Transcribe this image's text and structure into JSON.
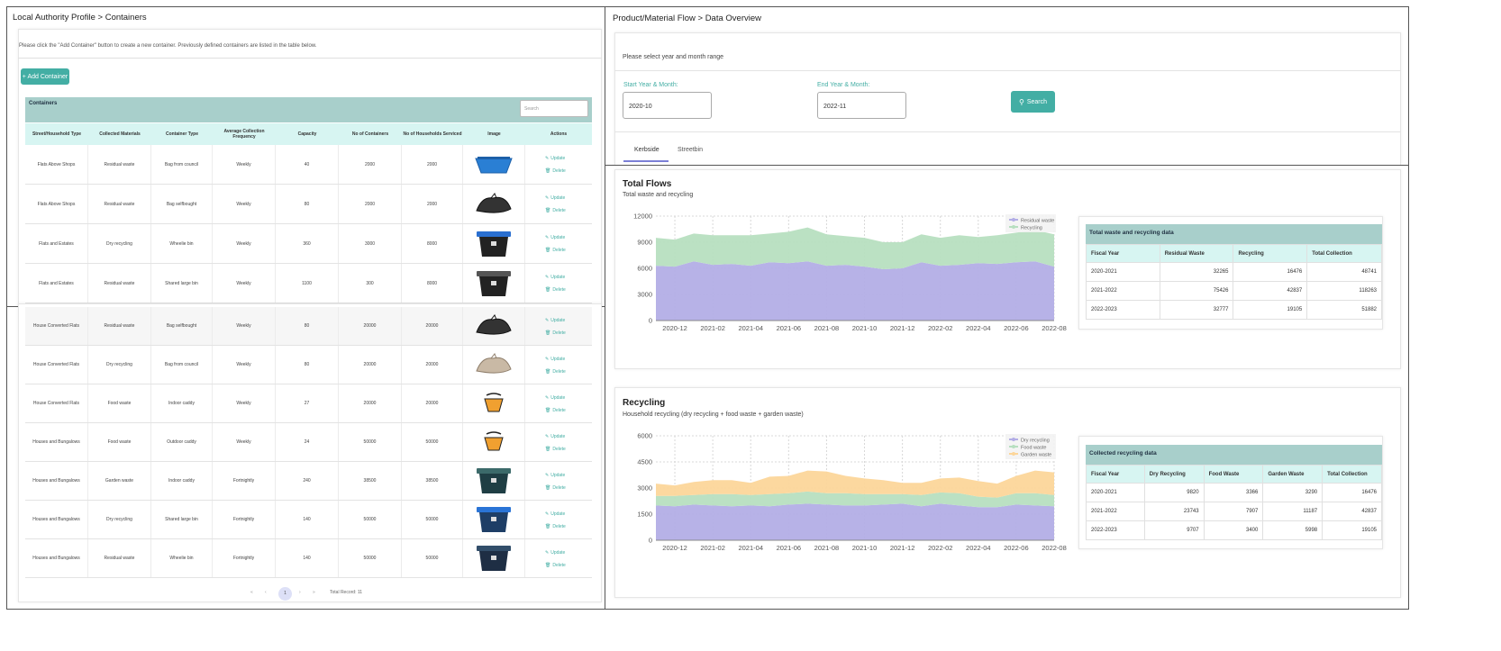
{
  "containers_panel": {
    "breadcrumb": "Local Authority Profile > Containers",
    "instruction": "Please click the \"Add Container\" button to create a new container. Previously defined containers are listed in the table below.",
    "add_button": "+ Add Container",
    "table_title": "Containers",
    "search_placeholder": "Search",
    "columns": [
      "Street/Household Type",
      "Collected Materials",
      "Container Type",
      "Average Collection Frequency",
      "Capacity",
      "No of Containers",
      "No of Households Serviced",
      "Image",
      "Actions"
    ],
    "update_label": "Update",
    "delete_label": "Delete",
    "rows": [
      {
        "type": "Flats Above Shops",
        "material": "Residual waste",
        "container": "Bag from council",
        "freq": "Weekly",
        "capacity": "40",
        "count": "2000",
        "households": "2000",
        "image": "blue-skip"
      },
      {
        "type": "Flats Above Shops",
        "material": "Residual waste",
        "container": "Bag selfbought",
        "freq": "Weekly",
        "capacity": "80",
        "count": "2000",
        "households": "2000",
        "image": "black-bag"
      },
      {
        "type": "Flats and Estates",
        "material": "Dry recycling",
        "container": "Wheelie bin",
        "freq": "Weekly",
        "capacity": "360",
        "count": "3000",
        "households": "8000",
        "image": "blue-lid-bin"
      },
      {
        "type": "Flats and Estates",
        "material": "Residual waste",
        "container": "Shared large bin",
        "freq": "Weekly",
        "capacity": "1100",
        "count": "300",
        "households": "8000",
        "image": "grey-large-bin"
      },
      {
        "type": "House Converted Flats",
        "material": "Residual waste",
        "container": "Bag selfbought",
        "freq": "Weekly",
        "capacity": "80",
        "count": "20000",
        "households": "20000",
        "image": "black-bag"
      },
      {
        "type": "House Converted Flats",
        "material": "Dry recycling",
        "container": "Bag from council",
        "freq": "Weekly",
        "capacity": "80",
        "count": "20000",
        "households": "20000",
        "image": "clear-bag"
      },
      {
        "type": "House Converted Flats",
        "material": "Food waste",
        "container": "Indoor caddy",
        "freq": "Weekly",
        "capacity": "27",
        "count": "20000",
        "households": "20000",
        "image": "orange-caddy"
      },
      {
        "type": "Houses and Bungalows",
        "material": "Food waste",
        "container": "Outdoor caddy",
        "freq": "Weekly",
        "capacity": "24",
        "count": "50000",
        "households": "50000",
        "image": "orange-caddy"
      },
      {
        "type": "Houses and Bungalows",
        "material": "Garden waste",
        "container": "Indoor caddy",
        "freq": "Fortnightly",
        "capacity": "240",
        "count": "38500",
        "households": "38500",
        "image": "green-bin"
      },
      {
        "type": "Houses and Bungalows",
        "material": "Dry recycling",
        "container": "Shared large bin",
        "freq": "Fortnightly",
        "capacity": "140",
        "count": "50000",
        "households": "50000",
        "image": "blue-bin"
      },
      {
        "type": "Houses and Bungalows",
        "material": "Residual waste",
        "container": "Wheelie bin",
        "freq": "Fortnightly",
        "capacity": "140",
        "count": "50000",
        "households": "50000",
        "image": "dark-bin"
      }
    ],
    "pager": {
      "first": "«",
      "prev": "‹",
      "page": "1",
      "next": "›",
      "last": "»",
      "total": "Total Record: 11"
    }
  },
  "flow_panel": {
    "breadcrumb": "Product/Material Flow > Data Overview",
    "instruction": "Please select year and month range",
    "start_label": "Start Year & Month:",
    "start_value": "2020-10",
    "end_label": "End Year & Month:",
    "end_value": "2022-11",
    "search_button": "Search",
    "tabs": [
      "Kerbside",
      "Streetbin"
    ],
    "active_tab": 0
  },
  "total_flows": {
    "title": "Total Flows",
    "subtitle": "Total waste and recycling",
    "table_title": "Total waste and recycling data",
    "columns": [
      "Fiscal Year",
      "Residual Waste",
      "Recycling",
      "Total Collection"
    ],
    "rows": [
      [
        "2020-2021",
        "32265",
        "16476",
        "48741"
      ],
      [
        "2021-2022",
        "75426",
        "42837",
        "118263"
      ],
      [
        "2022-2023",
        "32777",
        "19105",
        "51882"
      ]
    ]
  },
  "recycling": {
    "title": "Recycling",
    "subtitle": "Household recycling (dry recycling + food waste + garden waste)",
    "table_title": "Collected recycling data",
    "columns": [
      "Fiscal Year",
      "Dry Recycling",
      "Food Waste",
      "Garden Waste",
      "Total Collection"
    ],
    "rows": [
      [
        "2020-2021",
        "9820",
        "3366",
        "3290",
        "16476"
      ],
      [
        "2021-2022",
        "23743",
        "7907",
        "11187",
        "42837"
      ],
      [
        "2022-2023",
        "9707",
        "3400",
        "5998",
        "19105"
      ]
    ]
  },
  "chart_data": [
    {
      "type": "area",
      "stacked": true,
      "x": [
        "2020-11",
        "2020-12",
        "2021-01",
        "2021-02",
        "2021-03",
        "2021-04",
        "2021-05",
        "2021-06",
        "2021-07",
        "2021-08",
        "2021-09",
        "2021-10",
        "2021-11",
        "2021-12",
        "2022-01",
        "2022-02",
        "2022-03",
        "2022-04",
        "2022-05",
        "2022-06",
        "2022-07",
        "2022-08"
      ],
      "xticks": [
        "2020-12",
        "2021-02",
        "2021-04",
        "2021-06",
        "2021-08",
        "2021-10",
        "2021-12",
        "2022-02",
        "2022-04",
        "2022-06",
        "2022-08"
      ],
      "series": [
        {
          "name": "Residual waste",
          "color": "#b3aee6",
          "values": [
            6300,
            6200,
            6800,
            6400,
            6500,
            6300,
            6700,
            6600,
            6800,
            6300,
            6400,
            6200,
            5900,
            6000,
            6700,
            6300,
            6400,
            6600,
            6500,
            6700,
            6800,
            6200
          ]
        },
        {
          "name": "Recycling",
          "color": "#b7dfc0",
          "values": [
            3200,
            3100,
            3200,
            3400,
            3300,
            3500,
            3300,
            3600,
            3900,
            3600,
            3300,
            3300,
            3100,
            3000,
            3200,
            3200,
            3400,
            3000,
            3300,
            3400,
            3600,
            3700
          ]
        }
      ],
      "ylim": [
        0,
        12000
      ],
      "yticks": [
        0,
        3000,
        6000,
        9000,
        12000
      ],
      "grid": true,
      "legend": "top-right"
    },
    {
      "type": "area",
      "stacked": true,
      "x": [
        "2020-11",
        "2020-12",
        "2021-01",
        "2021-02",
        "2021-03",
        "2021-04",
        "2021-05",
        "2021-06",
        "2021-07",
        "2021-08",
        "2021-09",
        "2021-10",
        "2021-11",
        "2021-12",
        "2022-01",
        "2022-02",
        "2022-03",
        "2022-04",
        "2022-05",
        "2022-06",
        "2022-07",
        "2022-08"
      ],
      "xticks": [
        "2020-12",
        "2021-02",
        "2021-04",
        "2021-06",
        "2021-08",
        "2021-10",
        "2021-12",
        "2022-02",
        "2022-04",
        "2022-06",
        "2022-08"
      ],
      "series": [
        {
          "name": "Dry recycling",
          "color": "#b3aee6",
          "values": [
            2000,
            1950,
            2050,
            2000,
            1950,
            2000,
            1950,
            2050,
            2100,
            2050,
            2000,
            2000,
            2050,
            2100,
            1950,
            2100,
            2000,
            1900,
            1900,
            2050,
            2000,
            1950
          ]
        },
        {
          "name": "Food waste",
          "color": "#b7dfc0",
          "values": [
            550,
            600,
            550,
            650,
            700,
            600,
            700,
            650,
            700,
            650,
            700,
            650,
            600,
            550,
            650,
            650,
            700,
            600,
            550,
            650,
            700,
            650
          ]
        },
        {
          "name": "Garden waste",
          "color": "#fcd69a",
          "values": [
            700,
            600,
            750,
            800,
            800,
            700,
            1000,
            1000,
            1200,
            1250,
            1000,
            900,
            800,
            650,
            700,
            800,
            900,
            900,
            800,
            1000,
            1300,
            1300
          ]
        }
      ],
      "ylim": [
        0,
        6000
      ],
      "yticks": [
        0,
        1500,
        3000,
        4500,
        6000
      ],
      "grid": true,
      "legend": "top-right"
    }
  ]
}
